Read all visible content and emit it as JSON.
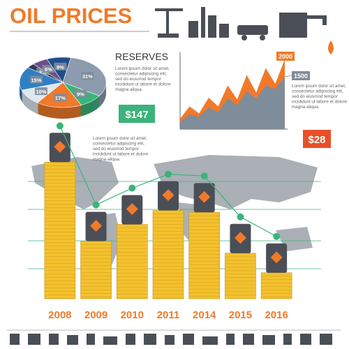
{
  "title": "OIL PRICES",
  "texts": [
    "Lorem ipsum dolor sit amet, consectetur adipiscing elit, sed do eiusmod tempor incididunt ut labore et dolore magna aliqua.",
    "Lorem ipsum dolor sit amet, consectetur adipiscing elit, sed do eiusmod tempor incididunt ut labore et dolore magna aliqua.",
    "Lorem ipsum dolor sit amet, consectetur adipiscing elit, sed do eiusmod tempor incididunt ut labore et dolore magna aliqua."
  ],
  "chart_data": [
    {
      "type": "pie",
      "values": [
        3,
        6,
        9,
        31,
        9,
        17,
        10,
        15
      ],
      "value_labels": [
        "3%",
        "6%",
        "9%",
        "31%",
        "9%",
        "17%",
        "10%",
        "15%"
      ],
      "colors": [
        "#2e3a59",
        "#6b4f8a",
        "#1f4e8c",
        "#8c9bad",
        "#3bb37a",
        "#f07a2a",
        "#dfe8f0",
        "#2f7fc4"
      ]
    },
    {
      "type": "area",
      "title": "RESERVES",
      "ylim": [
        0,
        2200
      ],
      "series": [
        {
          "color": "#f07a2a",
          "values": [
            300,
            650,
            450,
            900,
            650,
            1250,
            850,
            1550,
            1050,
            1750,
            1300,
            2000
          ],
          "value_labels": [
            null,
            null,
            null,
            null,
            null,
            null,
            null,
            null,
            null,
            null,
            null,
            "2000"
          ]
        },
        {
          "color": "#7f8c99",
          "values": [
            200,
            420,
            350,
            620,
            480,
            880,
            680,
            1080,
            880,
            1250,
            1150,
            1500
          ],
          "value_labels": [
            null,
            null,
            null,
            null,
            null,
            null,
            null,
            null,
            null,
            null,
            null,
            "1500"
          ]
        }
      ]
    },
    {
      "type": "bar",
      "categories": [
        "2008",
        "2009",
        "2010",
        "2011",
        "2014",
        "2015",
        "2016"
      ],
      "values": [
        147,
        62,
        80,
        95,
        93,
        49,
        28
      ],
      "value_labels": [
        "$147",
        null,
        null,
        null,
        null,
        null,
        "$28"
      ],
      "ylim": [
        0,
        160
      ],
      "color": "#f3c12e",
      "line_color": "#3bb37a"
    }
  ]
}
